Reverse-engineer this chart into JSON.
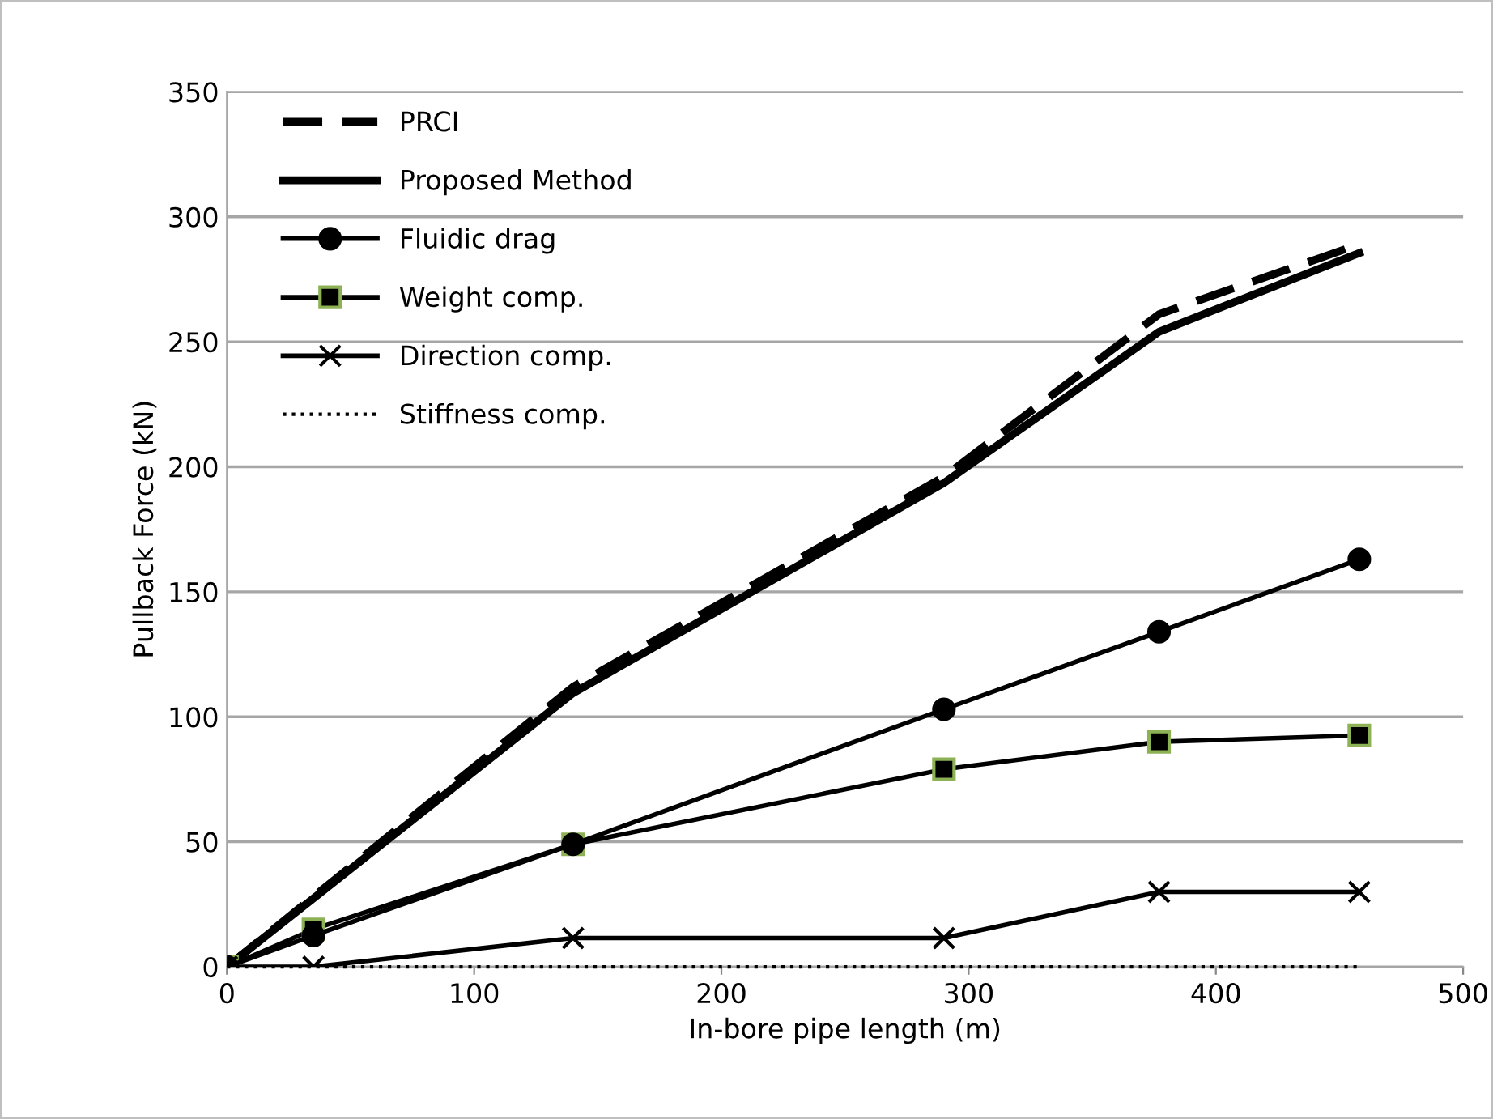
{
  "chart_data": {
    "type": "line",
    "xlabel": "In-bore pipe length (m)",
    "ylabel": "Pullback Force (kN)",
    "xlim": [
      0,
      500
    ],
    "xticks": [
      0,
      100,
      200,
      300,
      400,
      500
    ],
    "ylim": [
      0,
      350
    ],
    "yticks": [
      0,
      50,
      100,
      150,
      200,
      250,
      300,
      350
    ],
    "grid": "y",
    "legend": "top left",
    "series": [
      {
        "name": "PRCI",
        "color": "#000000",
        "line_style": "dashed",
        "marker": "none",
        "x": [
          0,
          140,
          290,
          377,
          458
        ],
        "values": [
          0,
          112,
          196,
          261,
          289
        ]
      },
      {
        "name": "Proposed Method",
        "color": "#000000",
        "line_style": "solid",
        "marker": "none",
        "x": [
          0,
          140,
          290,
          377,
          458
        ],
        "values": [
          0,
          109.5,
          193.5,
          254,
          285.5
        ]
      },
      {
        "name": "Fluidic drag",
        "color": "#000000",
        "line_style": "solid",
        "marker": "circle",
        "x": [
          0,
          35,
          140,
          290,
          377,
          458
        ],
        "values": [
          0,
          12.5,
          49,
          103,
          134,
          163
        ]
      },
      {
        "name": "Weight comp.",
        "color": "#000000",
        "line_style": "solid",
        "marker": "square",
        "x": [
          0,
          35,
          140,
          290,
          377,
          458
        ],
        "values": [
          0,
          15,
          49,
          79,
          90,
          92.5
        ]
      },
      {
        "name": "Direction comp.",
        "color": "#000000",
        "line_style": "solid",
        "marker": "cross",
        "x": [
          0,
          35,
          140,
          290,
          377,
          458
        ],
        "values": [
          0,
          0,
          11.5,
          11.5,
          30,
          30
        ]
      },
      {
        "name": "Stiffness comp.",
        "color": "#000000",
        "line_style": "dotted",
        "marker": "none",
        "x": [
          0,
          35,
          140,
          290,
          377,
          458
        ],
        "values": [
          0,
          0,
          0,
          0,
          0,
          0
        ]
      }
    ]
  }
}
